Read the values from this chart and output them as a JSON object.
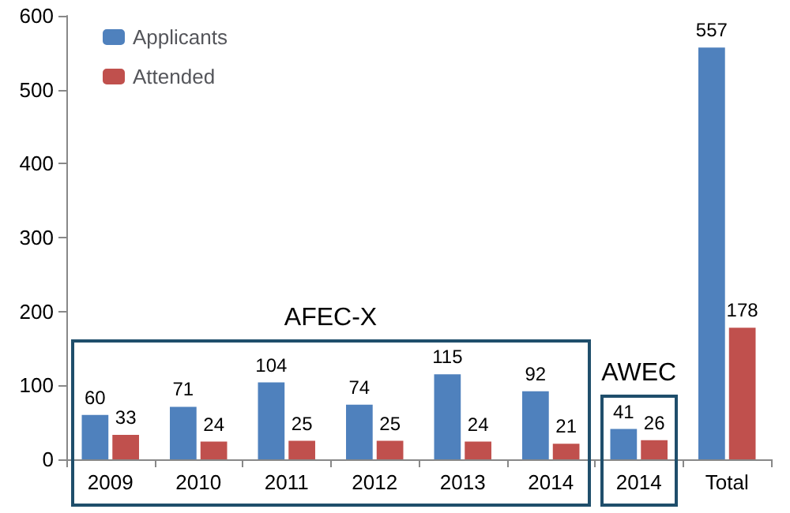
{
  "chart_data": {
    "type": "bar",
    "categories": [
      "2009",
      "2010",
      "2011",
      "2012",
      "2013",
      "2014",
      "2014",
      "Total"
    ],
    "series": [
      {
        "name": "Applicants",
        "color": "#4f81bd",
        "values": [
          60,
          71,
          104,
          74,
          115,
          92,
          41,
          557
        ]
      },
      {
        "name": "Attended",
        "color": "#c0504d",
        "values": [
          33,
          24,
          25,
          25,
          24,
          21,
          26,
          178
        ]
      }
    ],
    "ylim": [
      0,
      600
    ],
    "yticks": [
      0,
      100,
      200,
      300,
      400,
      500,
      600
    ],
    "grid": false,
    "legend": "top left",
    "data_labels": true,
    "annotations": [
      "AFEC-X",
      "AWEC"
    ]
  }
}
